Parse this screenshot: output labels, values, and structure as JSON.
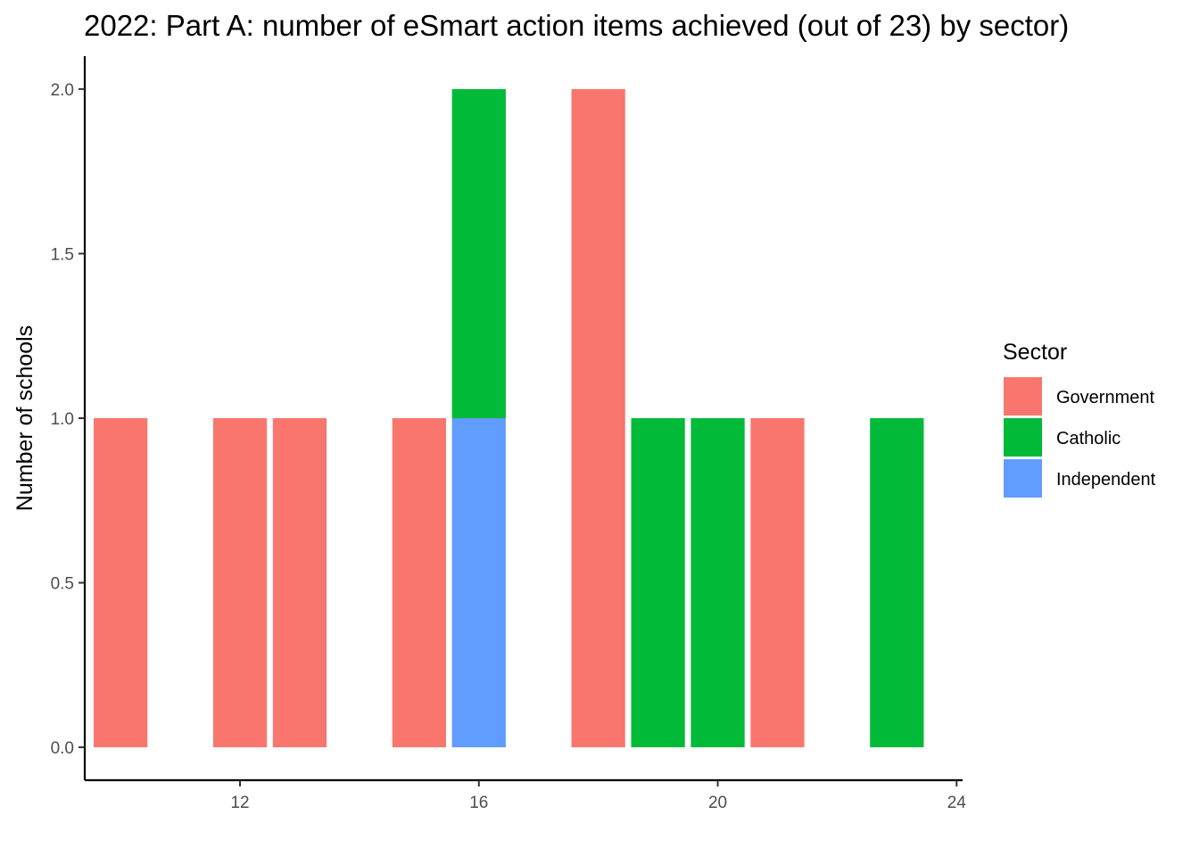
{
  "chart_data": {
    "type": "bar",
    "title": "2022: Part A: number of eSmart action items achieved (out of 23) by sector)",
    "xlabel": "",
    "ylabel": "Number of schools",
    "xlim": [
      9.4,
      24.1
    ],
    "ylim": [
      -0.1,
      2.1
    ],
    "bar_width": 0.9,
    "stacked": true,
    "x_ticks": [
      12,
      16,
      20,
      24
    ],
    "y_ticks": [
      0.0,
      0.5,
      1.0,
      1.5,
      2.0
    ],
    "y_tick_labels": [
      "0.0",
      "0.5",
      "1.0",
      "1.5",
      "2.0"
    ],
    "grid": false,
    "legend": {
      "title": "Sector",
      "position": "right"
    },
    "series": [
      {
        "name": "Government",
        "color": "#F8766D",
        "points": [
          {
            "x": 10,
            "y": 1
          },
          {
            "x": 12,
            "y": 1
          },
          {
            "x": 13,
            "y": 1
          },
          {
            "x": 15,
            "y": 1
          },
          {
            "x": 18,
            "y": 2
          },
          {
            "x": 21,
            "y": 1
          }
        ]
      },
      {
        "name": "Catholic",
        "color": "#00BA38",
        "points": [
          {
            "x": 16,
            "y": 1
          },
          {
            "x": 19,
            "y": 1
          },
          {
            "x": 20,
            "y": 1
          },
          {
            "x": 23,
            "y": 1
          }
        ]
      },
      {
        "name": "Independent",
        "color": "#619CFF",
        "points": [
          {
            "x": 16,
            "y": 1
          }
        ]
      }
    ]
  }
}
